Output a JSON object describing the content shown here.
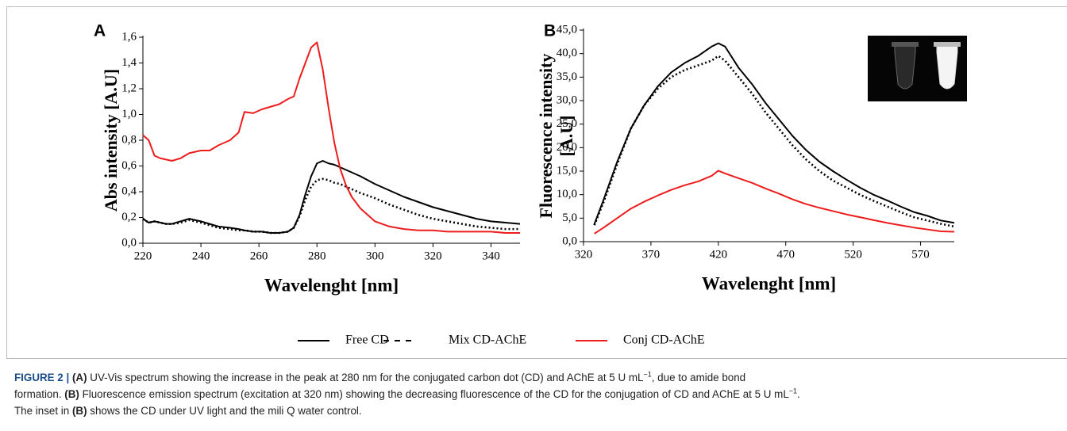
{
  "chart_data": [
    {
      "type": "line",
      "panel": "A",
      "ylabel": "Abs intensity [A.U]",
      "xlabel": "Wavelenght [nm]",
      "x": [
        220,
        222,
        224,
        226,
        228,
        230,
        233,
        236,
        240,
        243,
        246,
        250,
        253,
        255,
        258,
        261,
        264,
        267,
        270,
        272,
        274,
        276,
        278,
        280,
        282,
        284,
        286,
        288,
        290,
        292,
        295,
        300,
        305,
        310,
        315,
        320,
        325,
        330,
        335,
        340,
        345,
        350
      ],
      "series": [
        {
          "name": "Free CD",
          "color": "#000000",
          "dash": false,
          "values": [
            0.19,
            0.16,
            0.17,
            0.16,
            0.15,
            0.15,
            0.17,
            0.19,
            0.17,
            0.15,
            0.13,
            0.12,
            0.11,
            0.1,
            0.09,
            0.09,
            0.08,
            0.08,
            0.09,
            0.12,
            0.22,
            0.38,
            0.52,
            0.62,
            0.64,
            0.62,
            0.61,
            0.59,
            0.57,
            0.55,
            0.52,
            0.46,
            0.41,
            0.36,
            0.32,
            0.28,
            0.25,
            0.22,
            0.19,
            0.17,
            0.16,
            0.15
          ]
        },
        {
          "name": "Mix CD-AChE",
          "color": "#000000",
          "dash": true,
          "values": [
            0.19,
            0.16,
            0.17,
            0.16,
            0.15,
            0.15,
            0.16,
            0.18,
            0.16,
            0.14,
            0.12,
            0.11,
            0.1,
            0.1,
            0.09,
            0.09,
            0.08,
            0.08,
            0.09,
            0.12,
            0.21,
            0.34,
            0.44,
            0.49,
            0.5,
            0.49,
            0.47,
            0.46,
            0.44,
            0.42,
            0.39,
            0.35,
            0.3,
            0.26,
            0.22,
            0.19,
            0.17,
            0.15,
            0.13,
            0.12,
            0.11,
            0.11
          ]
        },
        {
          "name": "Conj CD-AChE",
          "color": "#ee1c1c",
          "dash": false,
          "values": [
            0.84,
            0.8,
            0.68,
            0.66,
            0.65,
            0.64,
            0.66,
            0.7,
            0.72,
            0.72,
            0.76,
            0.8,
            0.86,
            1.02,
            1.01,
            1.04,
            1.06,
            1.08,
            1.12,
            1.14,
            1.28,
            1.4,
            1.52,
            1.56,
            1.35,
            1.05,
            0.78,
            0.58,
            0.45,
            0.36,
            0.27,
            0.17,
            0.13,
            0.11,
            0.1,
            0.1,
            0.09,
            0.09,
            0.09,
            0.09,
            0.08,
            0.08
          ]
        }
      ],
      "xlim": [
        220,
        350
      ],
      "xticks": [
        220,
        240,
        260,
        280,
        300,
        320,
        340
      ],
      "ylim": [
        0,
        1.6
      ],
      "yticks": [
        {
          "value": 0,
          "label": "0,0"
        },
        {
          "value": 0.2,
          "label": "0,2"
        },
        {
          "value": 0.4,
          "label": "0,4"
        },
        {
          "value": 0.6,
          "label": "0,6"
        },
        {
          "value": 0.8,
          "label": "0,8"
        },
        {
          "value": 1.0,
          "label": "1,0"
        },
        {
          "value": 1.2,
          "label": "1,2"
        },
        {
          "value": 1.4,
          "label": "1,4"
        },
        {
          "value": 1.6,
          "label": "1,6"
        }
      ],
      "grid": false
    },
    {
      "type": "line",
      "panel": "B",
      "ylabel": [
        "Fluorescence intensity",
        "[A.U]"
      ],
      "xlabel": "Wavelenght [nm]",
      "x": [
        328,
        335,
        345,
        355,
        365,
        375,
        385,
        395,
        405,
        415,
        420,
        425,
        435,
        445,
        455,
        465,
        475,
        485,
        495,
        505,
        515,
        525,
        535,
        545,
        555,
        565,
        575,
        585,
        595
      ],
      "series": [
        {
          "color": "#000000",
          "dash": false,
          "values": [
            3.7,
            9,
            17,
            24,
            29,
            33,
            36,
            38,
            39.5,
            41.5,
            42.2,
            41.5,
            37,
            33.5,
            29.5,
            26,
            22.5,
            19.5,
            17,
            15,
            13.2,
            11.5,
            10,
            8.8,
            7.5,
            6.3,
            5.5,
            4.5,
            4.0
          ]
        },
        {
          "color": "#000000",
          "dash": true,
          "values": [
            3.5,
            8.5,
            16.5,
            24,
            29,
            32.5,
            35,
            36.5,
            37.5,
            38.5,
            39.5,
            38.5,
            35,
            31.5,
            27.5,
            24,
            20.5,
            17.5,
            15,
            13,
            11.5,
            10,
            8.7,
            7.5,
            6.3,
            5.2,
            4.5,
            3.8,
            3.2
          ]
        },
        {
          "color": "#ee1c1c",
          "dash": false,
          "values": [
            1.7,
            3,
            5,
            7,
            8.5,
            9.8,
            11,
            12,
            12.8,
            14,
            15.1,
            14.5,
            13.5,
            12.5,
            11.3,
            10.2,
            9,
            8,
            7.2,
            6.5,
            5.8,
            5.2,
            4.6,
            4,
            3.5,
            3,
            2.6,
            2.2,
            2.1
          ]
        }
      ],
      "xlim": [
        320,
        595
      ],
      "xticks": [
        320,
        370,
        420,
        470,
        520,
        570
      ],
      "ylim": [
        0,
        45
      ],
      "yticks": [
        {
          "value": 0,
          "label": "0,0"
        },
        {
          "value": 5,
          "label": "5,0"
        },
        {
          "value": 10,
          "label": "10,0"
        },
        {
          "value": 15,
          "label": "15,0"
        },
        {
          "value": 20,
          "label": "20,0"
        },
        {
          "value": 25,
          "label": "25,0"
        },
        {
          "value": 30,
          "label": "30,0"
        },
        {
          "value": 35,
          "label": "35,0"
        },
        {
          "value": 40,
          "label": "40,0"
        },
        {
          "value": 45,
          "label": "45,0"
        }
      ],
      "grid": false
    }
  ],
  "caption": [
    [
      {
        "text": "FIGURE 2 | ",
        "style": "label"
      },
      {
        "text": "(A)",
        "style": "bold"
      },
      {
        "text": " UV-Vis spectrum showing the increase in the peak at 280 nm for the conjugated carbon dot (CD) and AChE at 5 U mL"
      },
      {
        "text": "−1",
        "style": "sup"
      },
      {
        "text": ", due to amide bond"
      }
    ],
    [
      {
        "text": "formation. "
      },
      {
        "text": "(B)",
        "style": "bold"
      },
      {
        "text": " Fluorescence emission spectrum (excitation at 320 nm) showing the decreasing fluorescence of the CD for the conjugation of CD and AChE at 5 U mL"
      },
      {
        "text": "−1",
        "style": "sup"
      },
      {
        "text": "."
      }
    ],
    [
      {
        "text": "The inset in "
      },
      {
        "text": "(B)",
        "style": "bold"
      },
      {
        "text": " shows the CD under UV light and the mili Q water control."
      }
    ]
  ]
}
